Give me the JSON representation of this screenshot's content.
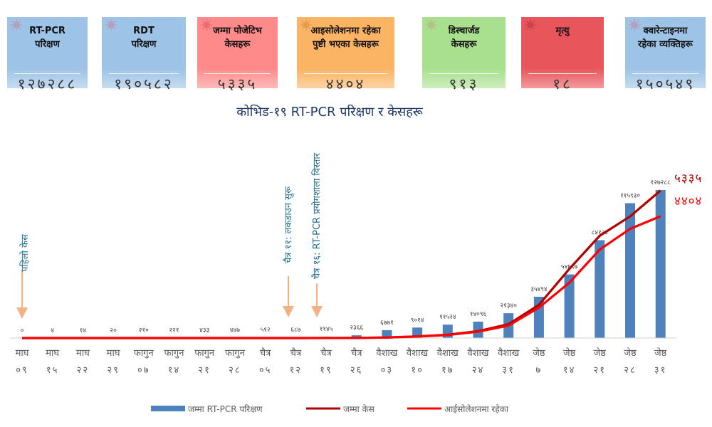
{
  "cards": [
    {
      "label1": "RT-PCR",
      "label2": "परिक्षण",
      "value": "१२७२८८",
      "color": "#9dc3e6"
    },
    {
      "label1": "RDT",
      "label2": "परिक्षण",
      "value": "१९०५८२",
      "color": "#9dc3e6"
    },
    {
      "label1": "जम्मा पोजेटिभ",
      "label2": "केसहरू",
      "value": "५३३५",
      "color": "#ff8a8a"
    },
    {
      "label1": "आइसोलेशनमा रहेका",
      "label2": "पुष्टी भएका केसहरू",
      "value": "४४०४",
      "color": "#fbb463"
    },
    {
      "label1": "डिस्चार्जड",
      "label2": "केसहरू",
      "value": "९१३",
      "color": "#a9e08e"
    },
    {
      "label1": "मृत्यु",
      "label2": "",
      "value": "१८",
      "color": "#e8555a"
    },
    {
      "label1": "क्वारेन्टाइनमा",
      "label2": "रहेका व्यक्तिहरू",
      "value": "१५०५४९",
      "color": "#9dc3e6"
    }
  ],
  "icons": {
    "card_decoration": "virus-icon"
  },
  "annotations": {
    "first_case": "पहिलो केस",
    "lockdown": "चैत्र ११: लकडाउन सुरू",
    "lab_expansion": "चैत्र १६: RT-PCR प्रयोगशाला विस्तार"
  },
  "chart_data": {
    "type": "bar",
    "title": "कोभिड-१९  RT-PCR परिक्षण र केसहरू",
    "categories": [
      [
        "माघ",
        "०९"
      ],
      [
        "माघ",
        "१५"
      ],
      [
        "माघ",
        "२२"
      ],
      [
        "माघ",
        "२९"
      ],
      [
        "फागुन",
        "०७"
      ],
      [
        "फागुन",
        "१४"
      ],
      [
        "फागुन",
        "२१"
      ],
      [
        "फागुन",
        "२८"
      ],
      [
        "चैत्र",
        "०५"
      ],
      [
        "चैत्र",
        "१२"
      ],
      [
        "चैत्र",
        "१९"
      ],
      [
        "चैत्र",
        "२६"
      ],
      [
        "वैशाख",
        "०३"
      ],
      [
        "वैशाख",
        "१०"
      ],
      [
        "वैशाख",
        "१७"
      ],
      [
        "वैशाख",
        "२४"
      ],
      [
        "वैशाख",
        "३१"
      ],
      [
        "जेष्ठ",
        "७"
      ],
      [
        "जेष्ठ",
        "१४"
      ],
      [
        "जेष्ठ",
        "२१"
      ],
      [
        "जेष्ठ",
        "२८"
      ],
      [
        "जेष्ठ",
        "३१"
      ]
    ],
    "series": [
      {
        "name": "जम्मा  RT-PCR परिक्षण",
        "kind": "bar",
        "color": "#4f81bd",
        "values": [
          0,
          4,
          14,
          20,
          210,
          221,
          433,
          447,
          512,
          687,
          1145,
          2366,
          6771,
          9014,
          11524,
          14096,
          21340,
          35494,
          54697,
          84124,
          115930,
          127288
        ],
        "labels": [
          "०",
          "४",
          "१४",
          "२०",
          "२१०",
          "२२१",
          "४३३",
          "४४७",
          "५१२",
          "६८७",
          "११४५",
          "२३६६",
          "६७७१",
          "९०१४",
          "११५२४",
          "१४०९६",
          "२१३४०",
          "३५४९४",
          "५४६९७",
          "८४१२४",
          "११५९३०",
          "१२७२८८"
        ]
      },
      {
        "name": "जम्मा केस",
        "kind": "line",
        "color": "#b00000",
        "values": [
          0,
          0,
          0,
          0,
          0,
          0,
          0,
          0,
          0,
          0,
          1,
          5,
          20,
          60,
          120,
          250,
          500,
          1200,
          2500,
          3700,
          4400,
          5335
        ],
        "end_label": "५३३५"
      },
      {
        "name": "आईसोलेशनमा रहेका",
        "kind": "line",
        "color": "#ff0000",
        "values": [
          0,
          0,
          0,
          0,
          0,
          0,
          0,
          0,
          0,
          0,
          1,
          5,
          20,
          55,
          110,
          230,
          450,
          1100,
          2000,
          3200,
          3950,
          4404
        ],
        "end_label": "४४०४"
      }
    ],
    "ylim": [
      0,
      145000
    ],
    "line_ylim": [
      0,
      6100
    ],
    "legend_position": "bottom"
  }
}
